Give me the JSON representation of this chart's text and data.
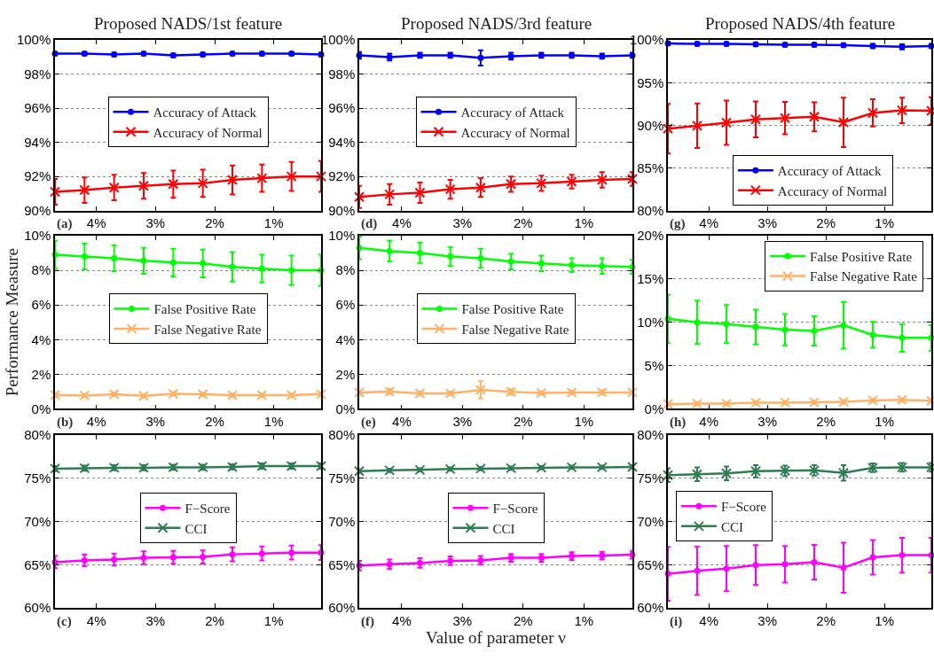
{
  "chart_data": [
    {
      "type": "line",
      "title": "Proposed NADS/1st feature",
      "annotations": [
        "(a)"
      ],
      "x": [
        4.7,
        4.2,
        3.7,
        3.2,
        2.7,
        2.2,
        1.7,
        1.2,
        0.7,
        0.2
      ],
      "xlim": [
        4.7,
        0.2
      ],
      "xticks": [
        {
          "value": 4,
          "label": "4%"
        },
        {
          "value": 3,
          "label": "3%"
        },
        {
          "value": 2,
          "label": "2%"
        },
        {
          "value": 1,
          "label": "1%"
        }
      ],
      "ylim": [
        90,
        100
      ],
      "yticks": [
        {
          "value": 90,
          "label": "90%"
        },
        {
          "value": 92,
          "label": "92%"
        },
        {
          "value": 94,
          "label": "94%"
        },
        {
          "value": 96,
          "label": "96%"
        },
        {
          "value": 98,
          "label": "98%"
        },
        {
          "value": 100,
          "label": "100%"
        }
      ],
      "grid": "y",
      "legend": "center",
      "series": [
        {
          "name": "Accuracy of Attack",
          "color": "#0000ff",
          "marker": "circle",
          "values": [
            99.2,
            99.2,
            99.15,
            99.2,
            99.1,
            99.15,
            99.2,
            99.2,
            99.2,
            99.15
          ],
          "errors": [
            0.1,
            0.1,
            0.1,
            0.1,
            0.1,
            0.1,
            0.1,
            0.1,
            0.1,
            0.1
          ]
        },
        {
          "name": "Accuracy of Normal",
          "color": "#ff0000",
          "marker": "cross",
          "values": [
            91.1,
            91.2,
            91.35,
            91.45,
            91.55,
            91.6,
            91.8,
            91.9,
            92.0,
            92.0
          ],
          "errors": [
            0.75,
            0.75,
            0.75,
            0.75,
            0.8,
            0.8,
            0.85,
            0.8,
            0.85,
            0.9
          ]
        }
      ]
    },
    {
      "type": "line",
      "ylabel": "Performance Measure",
      "annotations": [
        "(b)"
      ],
      "x": [
        4.7,
        4.2,
        3.7,
        3.2,
        2.7,
        2.2,
        1.7,
        1.2,
        0.7,
        0.2
      ],
      "xlim": [
        4.7,
        0.2
      ],
      "xticks": [
        {
          "value": 4,
          "label": "4%"
        },
        {
          "value": 3,
          "label": "3%"
        },
        {
          "value": 2,
          "label": "2%"
        },
        {
          "value": 1,
          "label": "1%"
        }
      ],
      "ylim": [
        0,
        10
      ],
      "yticks": [
        {
          "value": 0,
          "label": "0%"
        },
        {
          "value": 2,
          "label": "2%"
        },
        {
          "value": 4,
          "label": "4%"
        },
        {
          "value": 6,
          "label": "6%"
        },
        {
          "value": 8,
          "label": "8%"
        },
        {
          "value": 10,
          "label": "10%"
        }
      ],
      "grid": "y",
      "legend": "center",
      "series": [
        {
          "name": "False Positive Rate",
          "color": "#00ff00",
          "marker": "circle",
          "values": [
            8.9,
            8.8,
            8.7,
            8.55,
            8.45,
            8.4,
            8.2,
            8.1,
            8.0,
            8.0
          ],
          "errors": [
            0.8,
            0.75,
            0.75,
            0.75,
            0.8,
            0.8,
            0.85,
            0.8,
            0.85,
            0.9
          ]
        },
        {
          "name": "False Negative Rate",
          "color": "#ffb266",
          "marker": "cross",
          "values": [
            0.8,
            0.77,
            0.84,
            0.75,
            0.87,
            0.84,
            0.79,
            0.79,
            0.79,
            0.85
          ],
          "errors": [
            0.1,
            0.1,
            0.1,
            0.1,
            0.1,
            0.1,
            0.1,
            0.1,
            0.1,
            0.1
          ]
        }
      ]
    },
    {
      "type": "line",
      "annotations": [
        "(c)"
      ],
      "x": [
        4.7,
        4.2,
        3.7,
        3.2,
        2.7,
        2.2,
        1.7,
        1.2,
        0.7,
        0.2
      ],
      "xlim": [
        4.7,
        0.2
      ],
      "xticks": [
        {
          "value": 4,
          "label": "4%"
        },
        {
          "value": 3,
          "label": "3%"
        },
        {
          "value": 2,
          "label": "2%"
        },
        {
          "value": 1,
          "label": "1%"
        }
      ],
      "ylim": [
        60,
        80
      ],
      "yticks": [
        {
          "value": 60,
          "label": "60%"
        },
        {
          "value": 65,
          "label": "65%"
        },
        {
          "value": 70,
          "label": "70%"
        },
        {
          "value": 75,
          "label": "75%"
        },
        {
          "value": 80,
          "label": "80%"
        }
      ],
      "grid": "y",
      "legend": "center",
      "series": [
        {
          "name": "F−Score",
          "color": "#ff00ff",
          "marker": "circle",
          "values": [
            65.3,
            65.5,
            65.6,
            65.8,
            65.85,
            65.9,
            66.2,
            66.3,
            66.4,
            66.4
          ],
          "errors": [
            0.7,
            0.7,
            0.7,
            0.75,
            0.75,
            0.75,
            0.8,
            0.8,
            0.8,
            0.85
          ]
        },
        {
          "name": "CCI",
          "color": "#2e7d52",
          "marker": "cross",
          "values": [
            76.1,
            76.15,
            76.2,
            76.2,
            76.25,
            76.25,
            76.3,
            76.4,
            76.4,
            76.4
          ],
          "errors": [
            0.3,
            0.3,
            0.3,
            0.3,
            0.3,
            0.3,
            0.3,
            0.3,
            0.3,
            0.3
          ]
        }
      ]
    },
    {
      "type": "line",
      "title": "Proposed NADS/3rd feature",
      "annotations": [
        "(d)"
      ],
      "x": [
        4.7,
        4.2,
        3.7,
        3.2,
        2.7,
        2.2,
        1.7,
        1.2,
        0.7,
        0.2
      ],
      "xlim": [
        4.7,
        0.2
      ],
      "xticks": [
        {
          "value": 4,
          "label": "4%"
        },
        {
          "value": 3,
          "label": "3%"
        },
        {
          "value": 2,
          "label": "2%"
        },
        {
          "value": 1,
          "label": "1%"
        }
      ],
      "ylim": [
        90,
        100
      ],
      "yticks": [
        {
          "value": 90,
          "label": "90%"
        },
        {
          "value": 92,
          "label": "92%"
        },
        {
          "value": 94,
          "label": "94%"
        },
        {
          "value": 96,
          "label": "96%"
        },
        {
          "value": 98,
          "label": "98%"
        },
        {
          "value": 100,
          "label": "100%"
        }
      ],
      "grid": "y",
      "legend": "center",
      "series": [
        {
          "name": "Accuracy of Attack",
          "color": "#0000ff",
          "marker": "circle",
          "values": [
            99.1,
            99.0,
            99.1,
            99.1,
            98.95,
            99.05,
            99.1,
            99.1,
            99.05,
            99.1
          ],
          "errors": [
            0.2,
            0.2,
            0.15,
            0.15,
            0.45,
            0.2,
            0.15,
            0.15,
            0.15,
            0.15
          ]
        },
        {
          "name": "Accuracy of Normal",
          "color": "#ff0000",
          "marker": "cross",
          "values": [
            90.8,
            90.95,
            91.05,
            91.25,
            91.35,
            91.55,
            91.6,
            91.7,
            91.8,
            91.85
          ],
          "errors": [
            0.65,
            0.6,
            0.6,
            0.55,
            0.55,
            0.45,
            0.45,
            0.4,
            0.45,
            0.4
          ]
        }
      ]
    },
    {
      "type": "line",
      "annotations": [
        "(e)"
      ],
      "x": [
        4.7,
        4.2,
        3.7,
        3.2,
        2.7,
        2.2,
        1.7,
        1.2,
        0.7,
        0.2
      ],
      "xlim": [
        4.7,
        0.2
      ],
      "xticks": [
        {
          "value": 4,
          "label": "4%"
        },
        {
          "value": 3,
          "label": "3%"
        },
        {
          "value": 2,
          "label": "2%"
        },
        {
          "value": 1,
          "label": "1%"
        }
      ],
      "ylim": [
        0,
        10
      ],
      "yticks": [
        {
          "value": 0,
          "label": "0%"
        },
        {
          "value": 2,
          "label": "2%"
        },
        {
          "value": 4,
          "label": "4%"
        },
        {
          "value": 6,
          "label": "6%"
        },
        {
          "value": 8,
          "label": "8%"
        },
        {
          "value": 10,
          "label": "10%"
        }
      ],
      "grid": "y",
      "legend": "center",
      "series": [
        {
          "name": "False Positive Rate",
          "color": "#00ff00",
          "marker": "circle",
          "values": [
            9.3,
            9.1,
            9.0,
            8.8,
            8.7,
            8.5,
            8.4,
            8.3,
            8.25,
            8.2
          ],
          "errors": [
            0.65,
            0.6,
            0.6,
            0.55,
            0.55,
            0.45,
            0.45,
            0.4,
            0.45,
            0.4
          ]
        },
        {
          "name": "False Negative Rate",
          "color": "#ffb266",
          "marker": "cross",
          "values": [
            0.94,
            1.0,
            0.89,
            0.89,
            1.1,
            0.98,
            0.92,
            0.94,
            0.95,
            0.95
          ],
          "errors": [
            0.1,
            0.15,
            0.1,
            0.1,
            0.5,
            0.15,
            0.1,
            0.1,
            0.12,
            0.1
          ]
        }
      ]
    },
    {
      "type": "line",
      "xlabel": "Value of parameter ν",
      "annotations": [
        "(f)"
      ],
      "x": [
        4.7,
        4.2,
        3.7,
        3.2,
        2.7,
        2.2,
        1.7,
        1.2,
        0.7,
        0.2
      ],
      "xlim": [
        4.7,
        0.2
      ],
      "xticks": [
        {
          "value": 4,
          "label": "4%"
        },
        {
          "value": 3,
          "label": "3%"
        },
        {
          "value": 2,
          "label": "2%"
        },
        {
          "value": 1,
          "label": "1%"
        }
      ],
      "ylim": [
        60,
        80
      ],
      "yticks": [
        {
          "value": 60,
          "label": "60%"
        },
        {
          "value": 65,
          "label": "65%"
        },
        {
          "value": 70,
          "label": "70%"
        },
        {
          "value": 75,
          "label": "75%"
        },
        {
          "value": 80,
          "label": "80%"
        }
      ],
      "grid": "y",
      "legend": "center",
      "series": [
        {
          "name": "F−Score",
          "color": "#ff00ff",
          "marker": "circle",
          "values": [
            64.9,
            65.05,
            65.2,
            65.45,
            65.5,
            65.8,
            65.8,
            66.0,
            66.05,
            66.15
          ],
          "errors": [
            0.55,
            0.55,
            0.55,
            0.5,
            0.5,
            0.45,
            0.45,
            0.45,
            0.45,
            0.45
          ]
        },
        {
          "name": "CCI",
          "color": "#2e7d52",
          "marker": "cross",
          "values": [
            75.8,
            75.9,
            75.95,
            76.05,
            76.1,
            76.15,
            76.2,
            76.25,
            76.25,
            76.3
          ],
          "errors": [
            0.2,
            0.2,
            0.2,
            0.2,
            0.2,
            0.2,
            0.2,
            0.2,
            0.2,
            0.2
          ]
        }
      ]
    },
    {
      "type": "line",
      "title": "Proposed NADS/4th feature",
      "annotations": [
        "(g)"
      ],
      "x": [
        4.7,
        4.2,
        3.7,
        3.2,
        2.7,
        2.2,
        1.7,
        1.2,
        0.7,
        0.2
      ],
      "xlim": [
        4.7,
        0.2
      ],
      "xticks": [
        {
          "value": 4,
          "label": "4%"
        },
        {
          "value": 3,
          "label": "3%"
        },
        {
          "value": 2,
          "label": "2%"
        },
        {
          "value": 1,
          "label": "1%"
        }
      ],
      "ylim": [
        80,
        100
      ],
      "yticks": [
        {
          "value": 80,
          "label": "80%"
        },
        {
          "value": 85,
          "label": "85%"
        },
        {
          "value": 90,
          "label": "90%"
        },
        {
          "value": 95,
          "label": "95%"
        },
        {
          "value": 100,
          "label": "100%"
        }
      ],
      "grid": "y",
      "legend": "bottom",
      "series": [
        {
          "name": "Accuracy of Attack",
          "color": "#0000ff",
          "marker": "circle",
          "values": [
            99.6,
            99.55,
            99.55,
            99.5,
            99.45,
            99.45,
            99.4,
            99.3,
            99.2,
            99.3
          ],
          "errors": [
            0.2,
            0.2,
            0.2,
            0.2,
            0.2,
            0.2,
            0.2,
            0.25,
            0.3,
            0.25
          ]
        },
        {
          "name": "Accuracy of Normal",
          "color": "#ff0000",
          "marker": "cross",
          "values": [
            89.6,
            89.95,
            90.3,
            90.7,
            90.85,
            91.0,
            90.35,
            91.45,
            91.75,
            91.7
          ],
          "errors": [
            2.9,
            2.6,
            2.6,
            2.1,
            1.9,
            1.7,
            2.9,
            1.6,
            1.5,
            1.6
          ]
        }
      ]
    },
    {
      "type": "line",
      "annotations": [
        "(h)"
      ],
      "x": [
        4.7,
        4.2,
        3.7,
        3.2,
        2.7,
        2.2,
        1.7,
        1.2,
        0.7,
        0.2
      ],
      "xlim": [
        4.7,
        0.2
      ],
      "xticks": [
        {
          "value": 4,
          "label": "4%"
        },
        {
          "value": 3,
          "label": "3%"
        },
        {
          "value": 2,
          "label": "2%"
        },
        {
          "value": 1,
          "label": "1%"
        }
      ],
      "ylim": [
        0,
        20
      ],
      "yticks": [
        {
          "value": 0,
          "label": "0%"
        },
        {
          "value": 5,
          "label": "5%"
        },
        {
          "value": 10,
          "label": "10%"
        },
        {
          "value": 15,
          "label": "15%"
        },
        {
          "value": 20,
          "label": "20%"
        }
      ],
      "grid": "y",
      "legend": "top right",
      "series": [
        {
          "name": "False Positive Rate",
          "color": "#00ff00",
          "marker": "circle",
          "values": [
            10.4,
            10.0,
            9.8,
            9.45,
            9.15,
            9.0,
            9.65,
            8.55,
            8.2,
            8.2
          ],
          "errors": [
            2.8,
            2.5,
            2.2,
            2.0,
            1.8,
            1.7,
            2.7,
            1.5,
            1.6,
            1.5
          ]
        },
        {
          "name": "False Negative Rate",
          "color": "#ffb266",
          "marker": "cross",
          "values": [
            0.55,
            0.6,
            0.6,
            0.7,
            0.72,
            0.75,
            0.82,
            0.98,
            1.05,
            0.92
          ],
          "errors": [
            0.2,
            0.2,
            0.2,
            0.2,
            0.2,
            0.2,
            0.2,
            0.2,
            0.2,
            0.2
          ]
        }
      ]
    },
    {
      "type": "line",
      "annotations": [
        "(i)"
      ],
      "x": [
        4.7,
        4.2,
        3.7,
        3.2,
        2.7,
        2.2,
        1.7,
        1.2,
        0.7,
        0.2
      ],
      "xlim": [
        4.7,
        0.2
      ],
      "xticks": [
        {
          "value": 4,
          "label": "4%"
        },
        {
          "value": 3,
          "label": "3%"
        },
        {
          "value": 2,
          "label": "2%"
        },
        {
          "value": 1,
          "label": "1%"
        }
      ],
      "ylim": [
        60,
        80
      ],
      "yticks": [
        {
          "value": 60,
          "label": "60%"
        },
        {
          "value": 65,
          "label": "65%"
        },
        {
          "value": 70,
          "label": "70%"
        },
        {
          "value": 75,
          "label": "75%"
        },
        {
          "value": 80,
          "label": "80%"
        }
      ],
      "grid": "y",
      "legend": "center left",
      "series": [
        {
          "name": "F−Score",
          "color": "#ff00ff",
          "marker": "circle",
          "values": [
            63.95,
            64.3,
            64.55,
            64.95,
            65.05,
            65.3,
            64.65,
            65.85,
            66.1,
            66.1
          ],
          "errors": [
            3.1,
            2.8,
            2.6,
            2.3,
            2.1,
            2.0,
            2.9,
            2.0,
            2.0,
            2.0
          ]
        },
        {
          "name": "CCI",
          "color": "#2e7d52",
          "marker": "cross",
          "values": [
            75.35,
            75.45,
            75.55,
            75.8,
            75.85,
            75.9,
            75.6,
            76.2,
            76.25,
            76.25
          ],
          "errors": [
            0.8,
            0.8,
            0.8,
            0.7,
            0.6,
            0.6,
            0.9,
            0.5,
            0.5,
            0.5
          ]
        }
      ]
    }
  ]
}
